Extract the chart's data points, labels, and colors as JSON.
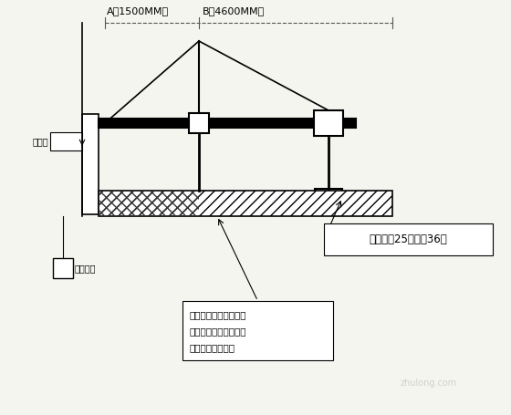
{
  "bg_color": "#f5f5f0",
  "line_color": "#000000",
  "dim_color": "#555555",
  "hatch_color": "#333333",
  "title_A": "A（1500MM）",
  "title_B": "B（4600MM）",
  "label_nv": "女儿墙",
  "label_motor": "电动吸篹",
  "label_weight": "配重每块25公斤共36块",
  "label_note_line1": "前、后支架底部垒一定",
  "label_note_line2": "厚度和宽度的木板增加",
  "label_note_line3": "受力面积来分散力",
  "fig_width": 5.6,
  "fig_height": 4.55,
  "dpi": 100
}
